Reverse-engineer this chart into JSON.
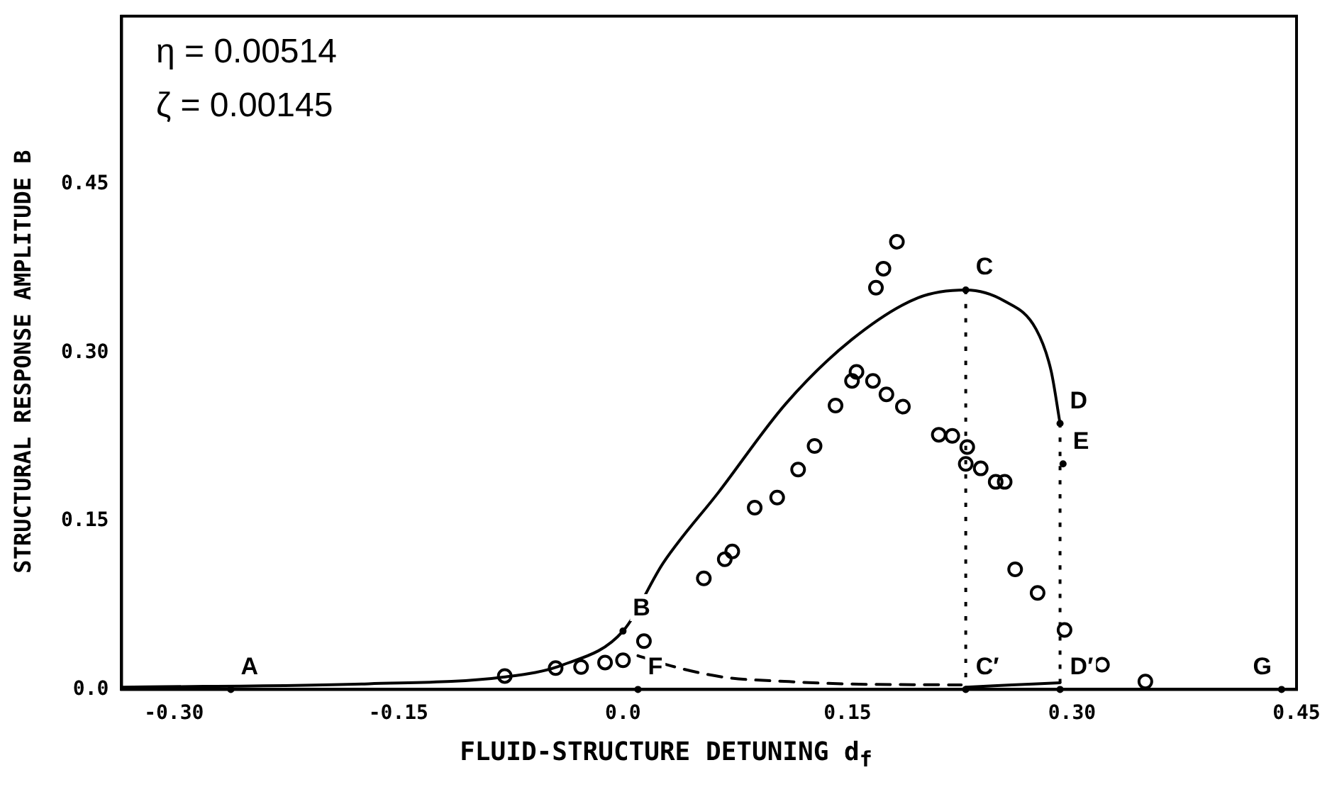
{
  "chart_data": {
    "type": "scatter",
    "xlabel": "FLUID-STRUCTURE DETUNING d$_{f}$",
    "ylabel": "STRUCTURAL RESPONSE AMPLITUDE B",
    "xlim": [
      -0.335,
      0.45
    ],
    "ylim": [
      0,
      0.6
    ],
    "xticks": [
      {
        "value": -0.3,
        "label": "-0.30"
      },
      {
        "value": -0.15,
        "label": "-0.15"
      },
      {
        "value": 0,
        "label": "0.0"
      },
      {
        "value": 0.15,
        "label": "0.15"
      },
      {
        "value": 0.3,
        "label": "0.30"
      },
      {
        "value": 0.45,
        "label": "0.45"
      }
    ],
    "yticks": [
      {
        "value": 0,
        "label": "0.0"
      },
      {
        "value": 0.15,
        "label": "0.15"
      },
      {
        "value": 0.3,
        "label": "0.30"
      },
      {
        "value": 0.45,
        "label": "0.45"
      }
    ],
    "grid": false,
    "legend": false,
    "series": [
      {
        "type": "scatter",
        "color": "#000000",
        "marker": "circle",
        "x": [
          -0.079,
          -0.045,
          -0.028,
          -0.012,
          0.0,
          0.014,
          0.054,
          0.068,
          0.073,
          0.088,
          0.103,
          0.117,
          0.128,
          0.142,
          0.153,
          0.156,
          0.167,
          0.176,
          0.187,
          0.211,
          0.22,
          0.23,
          0.229,
          0.239,
          0.249,
          0.255,
          0.262,
          0.277,
          0.295,
          0.32,
          0.349,
          0.169,
          0.174,
          0.183
        ],
        "values": [
          0.012,
          0.019,
          0.02,
          0.024,
          0.026,
          0.043,
          0.099,
          0.116,
          0.123,
          0.162,
          0.171,
          0.196,
          0.217,
          0.253,
          0.275,
          0.283,
          0.275,
          0.263,
          0.252,
          0.227,
          0.226,
          0.216,
          0.201,
          0.197,
          0.185,
          0.185,
          0.107,
          0.086,
          0.053,
          0.022,
          0.007,
          0.358,
          0.375,
          0.399
        ]
      },
      {
        "type": "line",
        "color": "#000000",
        "line_style": "solid",
        "marker": "none",
        "x": [
          -0.335,
          -0.17,
          -0.08,
          -0.04,
          0.0,
          0.027,
          0.064,
          0.109,
          0.153,
          0.197,
          0.229,
          0.255,
          0.276,
          0.286,
          0.292
        ],
        "values": [
          0.002,
          0.005,
          0.011,
          0.022,
          0.052,
          0.113,
          0.176,
          0.255,
          0.312,
          0.349,
          0.356,
          0.346,
          0.321,
          0.284,
          0.237
        ]
      },
      {
        "type": "line",
        "color": "#000000",
        "line_style": "dashed",
        "marker": "none",
        "x": [
          0.01,
          0.032,
          0.067,
          0.111,
          0.147,
          0.226
        ],
        "values": [
          0.03,
          0.021,
          0.011,
          0.007,
          0.005,
          0.004
        ]
      },
      {
        "type": "line",
        "color": "#000000",
        "line_style": "solid",
        "marker": "none",
        "x": [
          0.229,
          0.26,
          0.292
        ],
        "values": [
          0.002,
          0.004,
          0.006
        ]
      },
      {
        "type": "line",
        "color": "#000000",
        "line_style": "dotted",
        "x": [
          0.229,
          0.229
        ],
        "values": [
          0.356,
          0
        ]
      },
      {
        "type": "line",
        "color": "#000000",
        "line_style": "dotted",
        "x": [
          0.292,
          0.292
        ],
        "values": [
          0.237,
          0
        ]
      }
    ],
    "annotations": [
      "η = 0.00514",
      "ζ = 0.00145",
      {
        "text": "A",
        "x": -0.262,
        "y": 0
      },
      {
        "text": "B",
        "x": 0.0,
        "y": 0.052
      },
      {
        "text": "C",
        "x": 0.229,
        "y": 0.356
      },
      {
        "text": "D",
        "x": 0.292,
        "y": 0.237
      },
      {
        "text": "E",
        "x": 0.294,
        "y": 0.201
      },
      {
        "text": "F",
        "x": 0.01,
        "y": 0
      },
      {
        "text": "C′",
        "x": 0.229,
        "y": 0
      },
      {
        "text": "D′",
        "x": 0.292,
        "y": 0
      },
      {
        "text": "G",
        "x": 0.44,
        "y": 0
      }
    ]
  }
}
